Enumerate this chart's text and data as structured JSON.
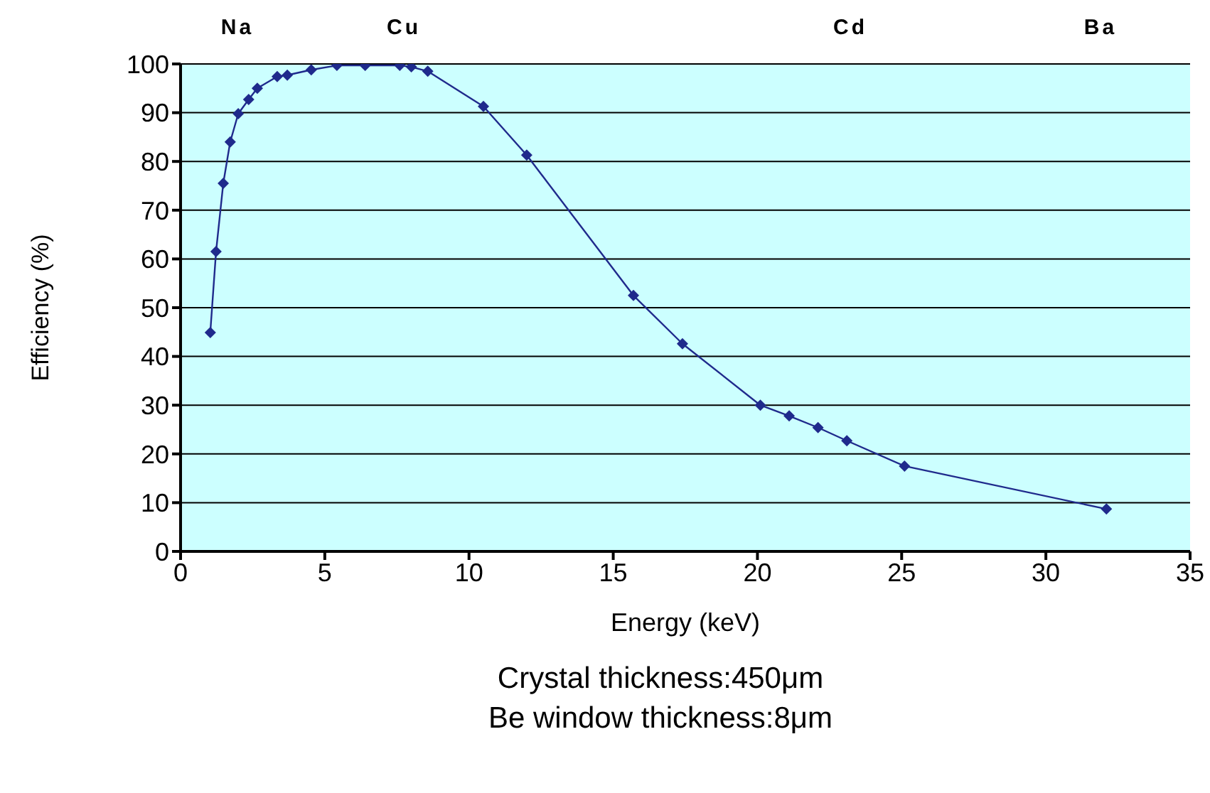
{
  "chart_data": {
    "type": "line",
    "xlabel": "Energy (keV)",
    "ylabel": "Efficiency (%)",
    "xlim": [
      0,
      35
    ],
    "xticks": [
      0,
      5,
      10,
      15,
      20,
      25,
      30,
      35
    ],
    "ylim": [
      0,
      100
    ],
    "yticks": [
      0,
      10,
      20,
      30,
      40,
      50,
      60,
      70,
      80,
      90,
      100
    ],
    "grid": "y",
    "marker": "diamond",
    "line_style": "solid",
    "legend": false,
    "series": [
      {
        "color": "#1f2a8c",
        "x": [
          1.03,
          1.23,
          1.48,
          1.72,
          2.0,
          2.36,
          2.66,
          3.35,
          3.7,
          4.53,
          5.42,
          6.4,
          7.6,
          8.0,
          8.57,
          10.5,
          12.0,
          15.7,
          17.4,
          20.1,
          21.1,
          22.1,
          23.1,
          25.1,
          32.1
        ],
        "values": [
          44.9,
          61.5,
          75.5,
          84,
          89.8,
          92.7,
          95,
          97.4,
          97.7,
          98.8,
          99.7,
          99.7,
          99.7,
          99.4,
          98.5,
          91.3,
          81.3,
          52.5,
          42.6,
          30,
          27.8,
          25.4,
          22.7,
          17.5,
          8.7
        ]
      }
    ],
    "annotations": [
      "Na",
      "Cu",
      "Cd",
      "Ba",
      "Crystal thickness:450μm",
      "Be window thickness:8μm"
    ]
  }
}
